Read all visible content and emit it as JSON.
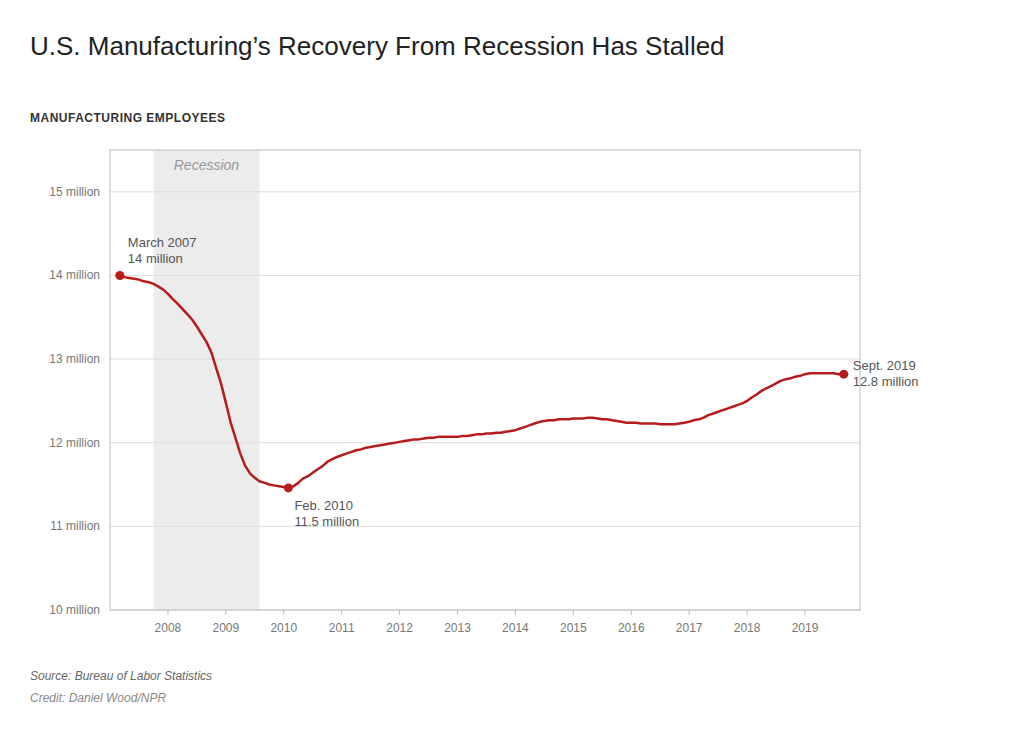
{
  "chart_data": {
    "type": "line",
    "title": "U.S. Manufacturing’s Recovery From Recession Has Stalled",
    "ylabel": "MANUFACTURING EMPLOYEES",
    "source": "Source: Bureau of Labor Statistics",
    "credit": "Credit: Daniel Wood/NPR",
    "color": "#b71c1c",
    "grid": true,
    "xlim": [
      2007.0,
      2019.95
    ],
    "xticks": [
      2008,
      2009,
      2010,
      2011,
      2012,
      2013,
      2014,
      2015,
      2016,
      2017,
      2018,
      2019
    ],
    "ylim": [
      10.0,
      15.5
    ],
    "yticks": [
      {
        "value": 10,
        "label": "10 million"
      },
      {
        "value": 11,
        "label": "11 million"
      },
      {
        "value": 12,
        "label": "12 million"
      },
      {
        "value": 13,
        "label": "13 million"
      },
      {
        "value": 14,
        "label": "14 million"
      },
      {
        "value": 15,
        "label": "15 million"
      }
    ],
    "recession": {
      "start": 2007.75,
      "end": 2009.58,
      "label": "Recession"
    },
    "annotations": [
      {
        "x": 2007.17,
        "y": 14.0,
        "label": "March 2007\n14 million"
      },
      {
        "x": 2010.08,
        "y": 11.46,
        "label": "Feb. 2010\n11.5 million"
      },
      {
        "x": 2019.67,
        "y": 12.82,
        "label": "Sept. 2019\n12.8 million"
      }
    ],
    "x": [
      2007.17,
      2007.25,
      2007.33,
      2007.42,
      2007.5,
      2007.58,
      2007.67,
      2007.75,
      2007.83,
      2007.92,
      2008.0,
      2008.08,
      2008.17,
      2008.25,
      2008.33,
      2008.42,
      2008.5,
      2008.58,
      2008.67,
      2008.75,
      2008.83,
      2008.92,
      2009.0,
      2009.08,
      2009.17,
      2009.25,
      2009.33,
      2009.42,
      2009.5,
      2009.58,
      2009.67,
      2009.75,
      2009.83,
      2009.92,
      2010.0,
      2010.08,
      2010.17,
      2010.25,
      2010.33,
      2010.42,
      2010.5,
      2010.58,
      2010.67,
      2010.75,
      2010.83,
      2010.92,
      2011.0,
      2011.08,
      2011.17,
      2011.25,
      2011.33,
      2011.42,
      2011.5,
      2011.58,
      2011.67,
      2011.75,
      2011.83,
      2011.92,
      2012.0,
      2012.08,
      2012.17,
      2012.25,
      2012.33,
      2012.42,
      2012.5,
      2012.58,
      2012.67,
      2012.75,
      2012.83,
      2012.92,
      2013.0,
      2013.08,
      2013.17,
      2013.25,
      2013.33,
      2013.42,
      2013.5,
      2013.58,
      2013.67,
      2013.75,
      2013.83,
      2013.92,
      2014.0,
      2014.08,
      2014.17,
      2014.25,
      2014.33,
      2014.42,
      2014.5,
      2014.58,
      2014.67,
      2014.75,
      2014.83,
      2014.92,
      2015.0,
      2015.08,
      2015.17,
      2015.25,
      2015.33,
      2015.42,
      2015.5,
      2015.58,
      2015.67,
      2015.75,
      2015.83,
      2015.92,
      2016.0,
      2016.08,
      2016.17,
      2016.25,
      2016.33,
      2016.42,
      2016.5,
      2016.58,
      2016.67,
      2016.75,
      2016.83,
      2016.92,
      2017.0,
      2017.08,
      2017.17,
      2017.25,
      2017.33,
      2017.42,
      2017.5,
      2017.58,
      2017.67,
      2017.75,
      2017.83,
      2017.92,
      2018.0,
      2018.08,
      2018.17,
      2018.25,
      2018.33,
      2018.42,
      2018.5,
      2018.58,
      2018.67,
      2018.75,
      2018.83,
      2018.92,
      2019.0,
      2019.08,
      2019.17,
      2019.25,
      2019.33,
      2019.42,
      2019.5,
      2019.58,
      2019.67
    ],
    "values": [
      14.0,
      13.98,
      13.97,
      13.96,
      13.95,
      13.93,
      13.92,
      13.9,
      13.87,
      13.83,
      13.78,
      13.72,
      13.66,
      13.6,
      13.54,
      13.47,
      13.39,
      13.3,
      13.2,
      13.08,
      12.9,
      12.7,
      12.48,
      12.25,
      12.05,
      11.87,
      11.73,
      11.63,
      11.58,
      11.54,
      11.52,
      11.5,
      11.49,
      11.48,
      11.47,
      11.46,
      11.48,
      11.52,
      11.57,
      11.6,
      11.64,
      11.68,
      11.72,
      11.77,
      11.8,
      11.83,
      11.85,
      11.87,
      11.89,
      11.91,
      11.92,
      11.94,
      11.95,
      11.96,
      11.97,
      11.98,
      11.99,
      12.0,
      12.01,
      12.02,
      12.03,
      12.04,
      12.04,
      12.05,
      12.06,
      12.06,
      12.07,
      12.07,
      12.07,
      12.07,
      12.07,
      12.08,
      12.08,
      12.09,
      12.1,
      12.1,
      12.11,
      12.11,
      12.12,
      12.12,
      12.13,
      12.14,
      12.15,
      12.17,
      12.19,
      12.21,
      12.23,
      12.25,
      12.26,
      12.27,
      12.27,
      12.28,
      12.28,
      12.28,
      12.29,
      12.29,
      12.29,
      12.3,
      12.3,
      12.29,
      12.28,
      12.28,
      12.27,
      12.26,
      12.25,
      12.24,
      12.24,
      12.24,
      12.23,
      12.23,
      12.23,
      12.23,
      12.22,
      12.22,
      12.22,
      12.22,
      12.23,
      12.24,
      12.25,
      12.27,
      12.28,
      12.3,
      12.33,
      12.35,
      12.37,
      12.39,
      12.41,
      12.43,
      12.45,
      12.47,
      12.5,
      12.54,
      12.58,
      12.62,
      12.65,
      12.68,
      12.71,
      12.74,
      12.76,
      12.77,
      12.79,
      12.8,
      12.82,
      12.83,
      12.83,
      12.83,
      12.83,
      12.83,
      12.83,
      12.82,
      12.82
    ]
  }
}
